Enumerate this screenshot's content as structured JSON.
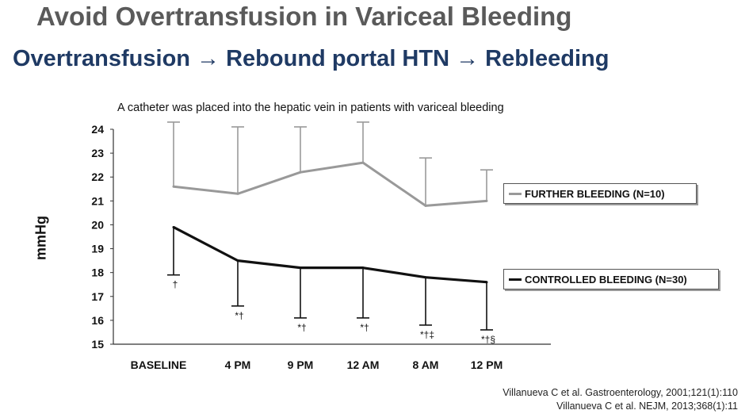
{
  "slide": {
    "title": "Avoid Overtransfusion in Variceal Bleeding",
    "subtitle": "Overtransfusion → Rebound portal HTN → Rebleeding",
    "citations": [
      "Villanueva C et al. Gastroenterology, 2001;121(1):110",
      "Villanueva C et al. NEJM, 2013;368(1):11"
    ]
  },
  "colors": {
    "title": "#5a5a5a",
    "subtitle": "#1f3a64",
    "further_bleeding": "#999999",
    "controlled_bleeding": "#111111"
  },
  "chart_data": {
    "type": "line",
    "title": "A catheter was placed into the hepatic vein in patients with variceal bleeding",
    "xlabel": "",
    "ylabel": "mmHg",
    "ylim": [
      15,
      24
    ],
    "yticks": [
      15,
      16,
      17,
      18,
      19,
      20,
      21,
      22,
      23,
      24
    ],
    "categories": [
      "BASELINE",
      "4 PM",
      "9 PM",
      "12 AM",
      "8 AM",
      "12 PM"
    ],
    "grid": false,
    "legend_placement": "right",
    "series": [
      {
        "name": "FURTHER BLEEDING (N=10)",
        "values": [
          21.6,
          21.3,
          22.2,
          22.6,
          20.8,
          21.0
        ],
        "error_upper": [
          24.3,
          24.1,
          24.1,
          24.3,
          22.8,
          22.3
        ],
        "marks": [
          "",
          "",
          "",
          "",
          "",
          ""
        ]
      },
      {
        "name": "CONTROLLED BLEEDING (N=30)",
        "values": [
          19.9,
          18.5,
          18.2,
          18.2,
          17.8,
          17.6
        ],
        "error_lower": [
          17.9,
          16.6,
          16.1,
          16.1,
          15.8,
          15.6
        ],
        "marks": [
          "†",
          "*†",
          "*†",
          "*†",
          "*†‡",
          "*†§"
        ]
      }
    ]
  }
}
